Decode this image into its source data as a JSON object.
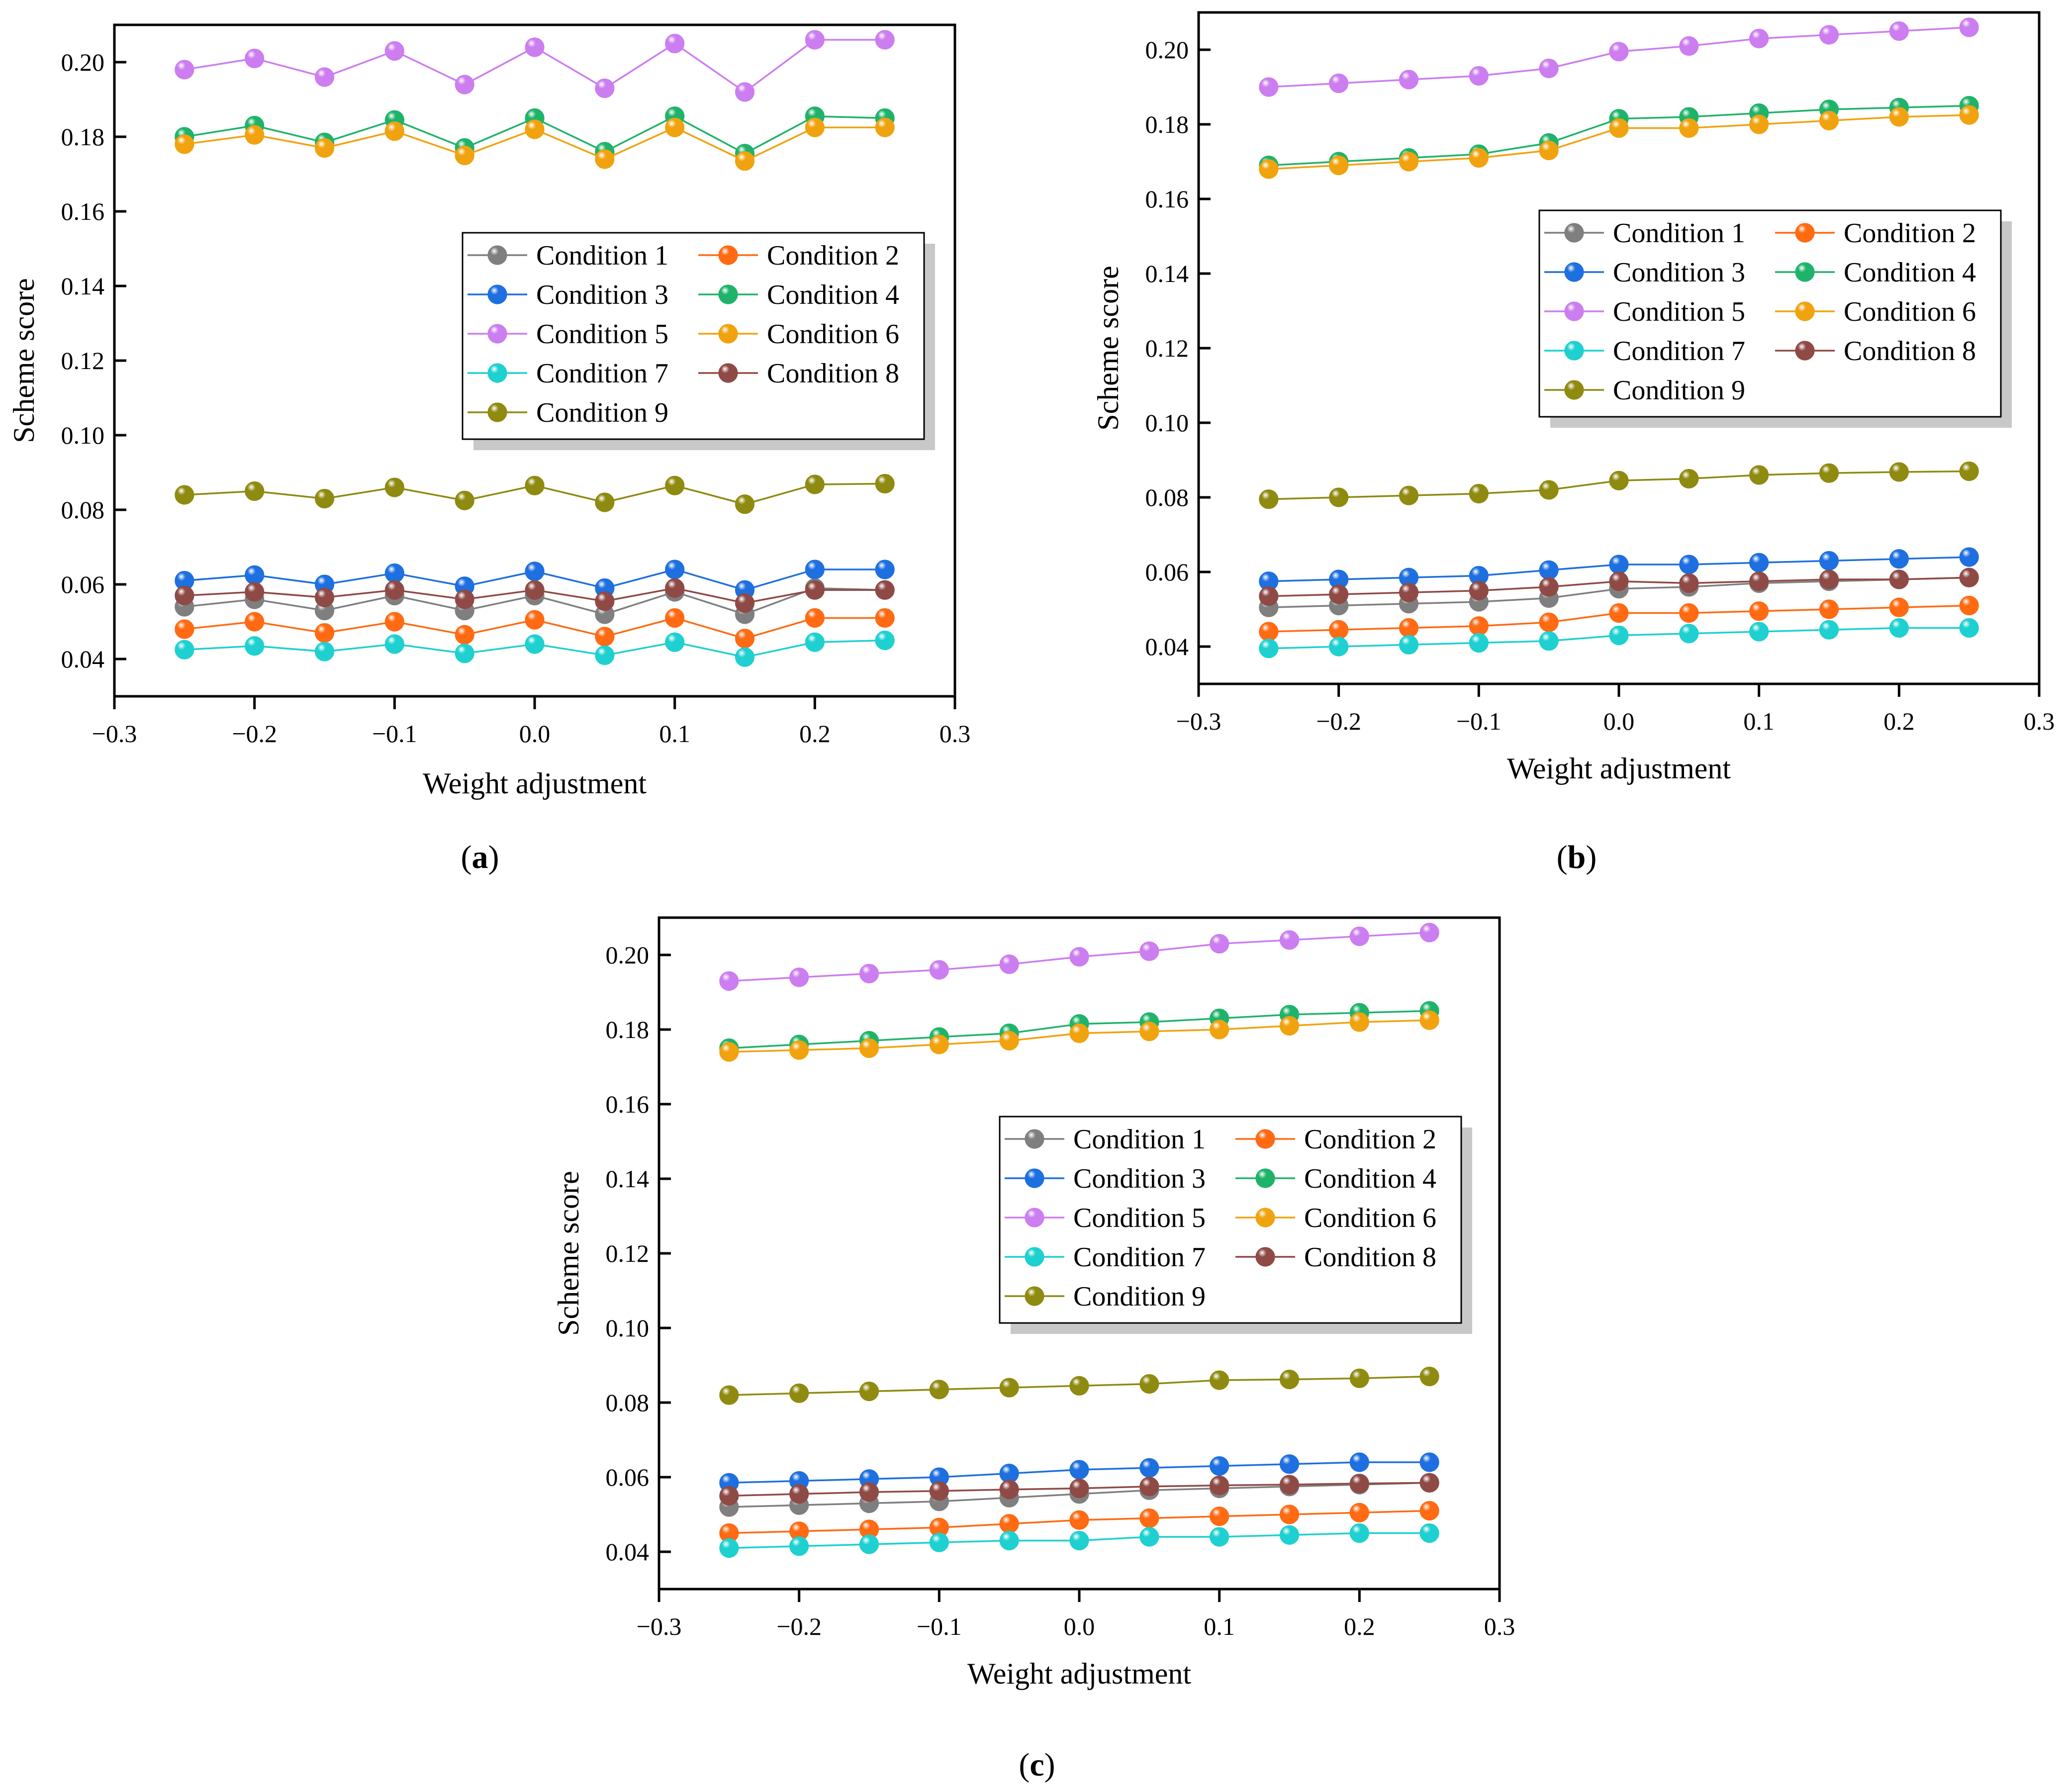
{
  "figure": {
    "captions": [
      {
        "open": "(",
        "letter": "a",
        "close": ")"
      },
      {
        "open": "(",
        "letter": "b",
        "close": ")"
      },
      {
        "open": "(",
        "letter": "c",
        "close": ")"
      }
    ]
  },
  "series_style": [
    {
      "name": "Condition 1",
      "color": "#7f7f7f"
    },
    {
      "name": "Condition 2",
      "color": "#ff6a13"
    },
    {
      "name": "Condition 3",
      "color": "#1e6fe0"
    },
    {
      "name": "Condition 4",
      "color": "#1fb36a"
    },
    {
      "name": "Condition 5",
      "color": "#cc7df0"
    },
    {
      "name": "Condition 6",
      "color": "#f0a30f"
    },
    {
      "name": "Condition 7",
      "color": "#1fd0d0"
    },
    {
      "name": "Condition 8",
      "color": "#8f4a46"
    },
    {
      "name": "Condition 9",
      "color": "#8f8a10"
    }
  ],
  "chart_data": [
    {
      "type": "line",
      "panel": "a",
      "xlabel": "Weight adjustment",
      "ylabel": "Scheme score",
      "xlim": [
        -0.3,
        0.3
      ],
      "ylim": [
        0.03,
        0.21
      ],
      "xticks": [
        -0.3,
        -0.2,
        -0.1,
        0.0,
        0.1,
        0.2,
        0.3
      ],
      "xtick_labels": [
        "−0.3",
        "−0.2",
        "−0.1",
        "0.0",
        "0.1",
        "0.2",
        "0.3"
      ],
      "yticks": [
        0.04,
        0.06,
        0.08,
        0.1,
        0.12,
        0.14,
        0.16,
        0.18,
        0.2
      ],
      "ytick_labels": [
        "0.04",
        "0.06",
        "0.08",
        "0.10",
        "0.12",
        "0.14",
        "0.16",
        "0.18",
        "0.20"
      ],
      "x": [
        -0.25,
        -0.2,
        -0.15,
        -0.1,
        -0.05,
        0.0,
        0.05,
        0.1,
        0.15,
        0.2,
        0.25
      ],
      "series": [
        {
          "name": "Condition 1",
          "values": [
            0.054,
            0.056,
            0.053,
            0.057,
            0.053,
            0.057,
            0.052,
            0.058,
            0.052,
            0.059,
            0.0585
          ]
        },
        {
          "name": "Condition 2",
          "values": [
            0.048,
            0.05,
            0.047,
            0.05,
            0.0465,
            0.0505,
            0.046,
            0.051,
            0.0455,
            0.051,
            0.051
          ]
        },
        {
          "name": "Condition 3",
          "values": [
            0.061,
            0.0625,
            0.06,
            0.063,
            0.0595,
            0.0635,
            0.059,
            0.064,
            0.0585,
            0.064,
            0.064
          ]
        },
        {
          "name": "Condition 4",
          "values": [
            0.18,
            0.183,
            0.1785,
            0.1845,
            0.177,
            0.185,
            0.176,
            0.1855,
            0.1755,
            0.1855,
            0.185
          ]
        },
        {
          "name": "Condition 5",
          "values": [
            0.198,
            0.201,
            0.196,
            0.203,
            0.194,
            0.204,
            0.193,
            0.205,
            0.192,
            0.206,
            0.206
          ]
        },
        {
          "name": "Condition 6",
          "values": [
            0.178,
            0.1805,
            0.177,
            0.1815,
            0.175,
            0.182,
            0.174,
            0.1825,
            0.1735,
            0.1825,
            0.1825
          ]
        },
        {
          "name": "Condition 7",
          "values": [
            0.0425,
            0.0435,
            0.042,
            0.044,
            0.0415,
            0.044,
            0.041,
            0.0445,
            0.0405,
            0.0445,
            0.045
          ]
        },
        {
          "name": "Condition 8",
          "values": [
            0.057,
            0.058,
            0.0565,
            0.0585,
            0.056,
            0.0585,
            0.0555,
            0.059,
            0.055,
            0.0585,
            0.0585
          ]
        },
        {
          "name": "Condition 9",
          "values": [
            0.084,
            0.085,
            0.083,
            0.086,
            0.0825,
            0.0865,
            0.082,
            0.0865,
            0.0815,
            0.0868,
            0.087
          ]
        }
      ],
      "legend": {
        "placement": "center-right",
        "columns": 2
      }
    },
    {
      "type": "line",
      "panel": "b",
      "xlabel": "Weight adjustment",
      "ylabel": "Scheme score",
      "xlim": [
        -0.3,
        0.3
      ],
      "ylim": [
        0.03,
        0.21
      ],
      "xticks": [
        -0.3,
        -0.2,
        -0.1,
        0.0,
        0.1,
        0.2,
        0.3
      ],
      "xtick_labels": [
        "−0.3",
        "−0.2",
        "−0.1",
        "0.0",
        "0.1",
        "0.2",
        "0.3"
      ],
      "yticks": [
        0.04,
        0.06,
        0.08,
        0.1,
        0.12,
        0.14,
        0.16,
        0.18,
        0.2
      ],
      "ytick_labels": [
        "0.04",
        "0.06",
        "0.08",
        "0.10",
        "0.12",
        "0.14",
        "0.16",
        "0.18",
        "0.20"
      ],
      "x": [
        -0.25,
        -0.2,
        -0.15,
        -0.1,
        -0.05,
        0.0,
        0.05,
        0.1,
        0.15,
        0.2,
        0.25
      ],
      "series": [
        {
          "name": "Condition 1",
          "values": [
            0.0505,
            0.051,
            0.0515,
            0.052,
            0.053,
            0.0555,
            0.056,
            0.057,
            0.0575,
            0.058,
            0.0585
          ]
        },
        {
          "name": "Condition 2",
          "values": [
            0.044,
            0.0445,
            0.045,
            0.0455,
            0.0465,
            0.049,
            0.049,
            0.0495,
            0.05,
            0.0505,
            0.051
          ]
        },
        {
          "name": "Condition 3",
          "values": [
            0.0575,
            0.058,
            0.0585,
            0.059,
            0.0605,
            0.062,
            0.062,
            0.0625,
            0.063,
            0.0635,
            0.064
          ]
        },
        {
          "name": "Condition 4",
          "values": [
            0.169,
            0.17,
            0.171,
            0.172,
            0.175,
            0.1815,
            0.182,
            0.183,
            0.184,
            0.1845,
            0.185
          ]
        },
        {
          "name": "Condition 5",
          "values": [
            0.19,
            0.191,
            0.192,
            0.193,
            0.195,
            0.1995,
            0.201,
            0.203,
            0.204,
            0.205,
            0.206
          ]
        },
        {
          "name": "Condition 6",
          "values": [
            0.168,
            0.169,
            0.17,
            0.171,
            0.173,
            0.179,
            0.179,
            0.18,
            0.181,
            0.182,
            0.1825
          ]
        },
        {
          "name": "Condition 7",
          "values": [
            0.0395,
            0.04,
            0.0405,
            0.041,
            0.0415,
            0.043,
            0.0435,
            0.044,
            0.0445,
            0.045,
            0.045
          ]
        },
        {
          "name": "Condition 8",
          "values": [
            0.0535,
            0.054,
            0.0545,
            0.055,
            0.056,
            0.0575,
            0.057,
            0.0575,
            0.058,
            0.058,
            0.0585
          ]
        },
        {
          "name": "Condition 9",
          "values": [
            0.0795,
            0.08,
            0.0805,
            0.081,
            0.082,
            0.0845,
            0.085,
            0.086,
            0.0865,
            0.0868,
            0.087
          ]
        }
      ],
      "legend": {
        "placement": "top-right",
        "columns": 2
      }
    },
    {
      "type": "line",
      "panel": "c",
      "xlabel": "Weight adjustment",
      "ylabel": "Scheme score",
      "xlim": [
        -0.3,
        0.3
      ],
      "ylim": [
        0.03,
        0.21
      ],
      "xticks": [
        -0.3,
        -0.2,
        -0.1,
        0.0,
        0.1,
        0.2,
        0.3
      ],
      "xtick_labels": [
        "−0.3",
        "−0.2",
        "−0.1",
        "0.0",
        "0.1",
        "0.2",
        "0.3"
      ],
      "yticks": [
        0.04,
        0.06,
        0.08,
        0.1,
        0.12,
        0.14,
        0.16,
        0.18,
        0.2
      ],
      "ytick_labels": [
        "0.04",
        "0.06",
        "0.08",
        "0.10",
        "0.12",
        "0.14",
        "0.16",
        "0.18",
        "0.20"
      ],
      "x": [
        -0.25,
        -0.2,
        -0.15,
        -0.1,
        -0.05,
        0.0,
        0.05,
        0.1,
        0.15,
        0.2,
        0.25
      ],
      "series": [
        {
          "name": "Condition 1",
          "values": [
            0.052,
            0.0525,
            0.053,
            0.0535,
            0.0545,
            0.0555,
            0.0565,
            0.057,
            0.0575,
            0.058,
            0.0585
          ]
        },
        {
          "name": "Condition 2",
          "values": [
            0.045,
            0.0455,
            0.046,
            0.0465,
            0.0475,
            0.0485,
            0.049,
            0.0495,
            0.05,
            0.0505,
            0.051
          ]
        },
        {
          "name": "Condition 3",
          "values": [
            0.0585,
            0.059,
            0.0595,
            0.06,
            0.061,
            0.062,
            0.0625,
            0.063,
            0.0635,
            0.064,
            0.064
          ]
        },
        {
          "name": "Condition 4",
          "values": [
            0.175,
            0.176,
            0.177,
            0.178,
            0.179,
            0.1815,
            0.182,
            0.183,
            0.184,
            0.1845,
            0.185
          ]
        },
        {
          "name": "Condition 5",
          "values": [
            0.193,
            0.194,
            0.195,
            0.196,
            0.1975,
            0.1995,
            0.201,
            0.203,
            0.204,
            0.205,
            0.206
          ]
        },
        {
          "name": "Condition 6",
          "values": [
            0.174,
            0.1745,
            0.175,
            0.176,
            0.177,
            0.179,
            0.1795,
            0.18,
            0.181,
            0.182,
            0.1825
          ]
        },
        {
          "name": "Condition 7",
          "values": [
            0.041,
            0.0415,
            0.042,
            0.0425,
            0.043,
            0.043,
            0.044,
            0.044,
            0.0445,
            0.045,
            0.045
          ]
        },
        {
          "name": "Condition 8",
          "values": [
            0.055,
            0.0555,
            0.056,
            0.0563,
            0.0567,
            0.057,
            0.0575,
            0.0578,
            0.058,
            0.0583,
            0.0585
          ]
        },
        {
          "name": "Condition 9",
          "values": [
            0.082,
            0.0825,
            0.083,
            0.0835,
            0.084,
            0.0845,
            0.085,
            0.086,
            0.0862,
            0.0865,
            0.087
          ]
        }
      ],
      "legend": {
        "placement": "center-right",
        "columns": 2
      }
    }
  ]
}
